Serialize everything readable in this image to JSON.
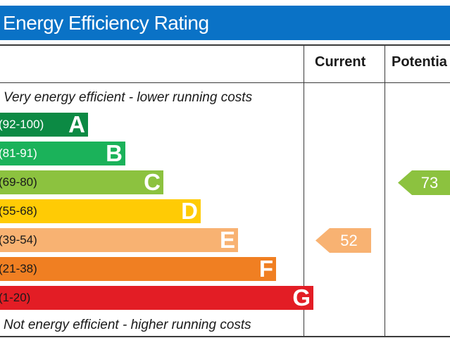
{
  "header": {
    "title": "Energy Efficiency Rating"
  },
  "columns": {
    "current": "Current",
    "potential": "Potentia"
  },
  "notes": {
    "top": "Very energy efficient - lower running costs",
    "bottom": "Not energy efficient - higher running costs"
  },
  "chart_data": {
    "type": "bar",
    "title": "Energy Efficiency Rating",
    "bands": [
      {
        "letter": "A",
        "range": "(92-100)",
        "min": 92,
        "max": 100,
        "color": "#0c8a44",
        "text_color": "#ffffff"
      },
      {
        "letter": "B",
        "range": "(81-91)",
        "min": 81,
        "max": 91,
        "color": "#1bb25a",
        "text_color": "#ffffff"
      },
      {
        "letter": "C",
        "range": "(69-80)",
        "min": 69,
        "max": 80,
        "color": "#8cc23f",
        "text_color": "#1a1a1a"
      },
      {
        "letter": "D",
        "range": "(55-68)",
        "min": 55,
        "max": 68,
        "color": "#ffcb05",
        "text_color": "#1a1a1a"
      },
      {
        "letter": "E",
        "range": "(39-54)",
        "min": 39,
        "max": 54,
        "color": "#f8b272",
        "text_color": "#1a1a1a"
      },
      {
        "letter": "F",
        "range": "(21-38)",
        "min": 21,
        "max": 38,
        "color": "#f07f22",
        "text_color": "#1a1a1a"
      },
      {
        "letter": "G",
        "range": "(1-20)",
        "min": 1,
        "max": 20,
        "color": "#e31d25",
        "text_color": "#1a1a1a"
      }
    ],
    "current": {
      "value": 52,
      "band": "E",
      "color": "#f8b272"
    },
    "potential": {
      "value": 73,
      "band": "C",
      "color": "#8cc23f"
    }
  }
}
